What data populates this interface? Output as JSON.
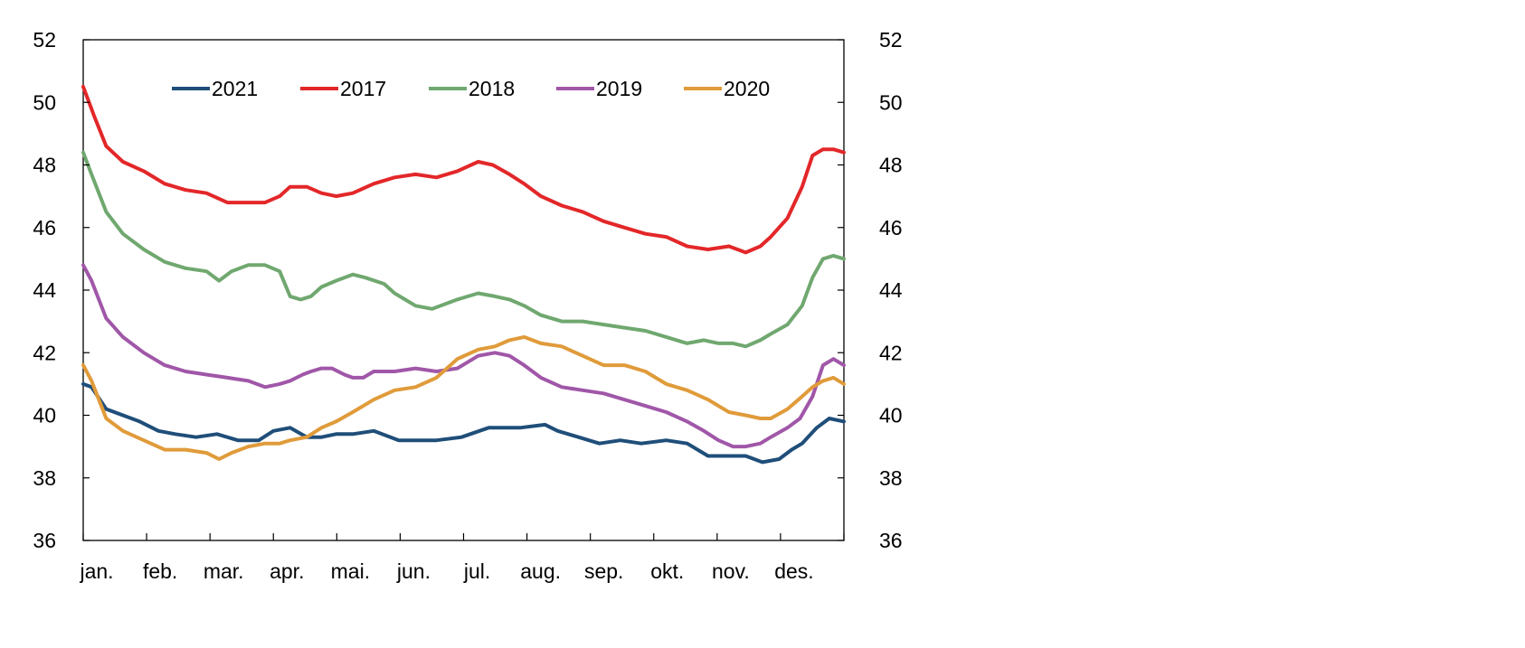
{
  "chart_data": {
    "type": "line",
    "title": "",
    "xlabel": "",
    "ylabel": "",
    "ylim": [
      36,
      52
    ],
    "y_ticks": [
      36,
      38,
      40,
      42,
      44,
      46,
      48,
      50,
      52
    ],
    "y_tick_labels": [
      "36",
      "38",
      "40",
      "42",
      "44",
      "46",
      "48",
      "50",
      "52"
    ],
    "right_axis": {
      "ylim": [
        36,
        52
      ],
      "tick_labels": [
        "36",
        "38",
        "40",
        "42",
        "44",
        "46",
        "48",
        "50",
        "52"
      ]
    },
    "x_tick_labels": [
      "jan.",
      "feb.",
      "mar.",
      "apr.",
      "mai.",
      "jun.",
      "jul.",
      "aug.",
      "sep.",
      "okt.",
      "nov.",
      "des."
    ],
    "x_domain": [
      1,
      365
    ],
    "x_unit": "day of year",
    "grid": false,
    "legend_position": "top",
    "series": [
      {
        "name": "2021",
        "color": "#1f4e79",
        "x": [
          1,
          5,
          12,
          20,
          28,
          37,
          45,
          55,
          65,
          75,
          85,
          92,
          100,
          108,
          115,
          122,
          130,
          140,
          152,
          160,
          170,
          182,
          195,
          210,
          222,
          228,
          238,
          248,
          258,
          268,
          280,
          290,
          300,
          310,
          318,
          326,
          334,
          340,
          345,
          352,
          358,
          365
        ],
        "values": [
          41.0,
          40.9,
          40.2,
          40.0,
          39.8,
          39.5,
          39.4,
          39.3,
          39.4,
          39.2,
          39.2,
          39.5,
          39.6,
          39.3,
          39.3,
          39.4,
          39.4,
          39.5,
          39.2,
          39.2,
          39.2,
          39.3,
          39.6,
          39.6,
          39.7,
          39.5,
          39.3,
          39.1,
          39.2,
          39.1,
          39.2,
          39.1,
          38.7,
          38.7,
          38.7,
          38.5,
          38.6,
          38.9,
          39.1,
          39.6,
          39.9,
          39.8
        ]
      },
      {
        "name": "2017",
        "color": "#e32729",
        "x": [
          1,
          6,
          12,
          20,
          30,
          40,
          50,
          60,
          70,
          80,
          88,
          95,
          100,
          108,
          115,
          122,
          130,
          140,
          150,
          160,
          170,
          180,
          190,
          197,
          205,
          212,
          220,
          230,
          240,
          250,
          260,
          270,
          280,
          290,
          300,
          310,
          318,
          325,
          330,
          338,
          345,
          350,
          355,
          360,
          365
        ],
        "values": [
          50.5,
          49.6,
          48.6,
          48.1,
          47.8,
          47.4,
          47.2,
          47.1,
          46.8,
          46.8,
          46.8,
          47.0,
          47.3,
          47.3,
          47.1,
          47.0,
          47.1,
          47.4,
          47.6,
          47.7,
          47.6,
          47.8,
          48.1,
          48.0,
          47.7,
          47.4,
          47.0,
          46.7,
          46.5,
          46.2,
          46.0,
          45.8,
          45.7,
          45.4,
          45.3,
          45.4,
          45.2,
          45.4,
          45.7,
          46.3,
          47.3,
          48.3,
          48.5,
          48.5,
          48.4
        ]
      },
      {
        "name": "2018",
        "color": "#70a870",
        "x": [
          1,
          5,
          12,
          20,
          30,
          40,
          50,
          60,
          66,
          72,
          80,
          88,
          95,
          100,
          105,
          110,
          115,
          122,
          130,
          136,
          145,
          150,
          160,
          168,
          180,
          190,
          198,
          205,
          212,
          220,
          230,
          240,
          250,
          260,
          270,
          280,
          290,
          298,
          305,
          312,
          318,
          325,
          330,
          338,
          345,
          350,
          355,
          360,
          365
        ],
        "values": [
          48.4,
          47.7,
          46.5,
          45.8,
          45.3,
          44.9,
          44.7,
          44.6,
          44.3,
          44.6,
          44.8,
          44.8,
          44.6,
          43.8,
          43.7,
          43.8,
          44.1,
          44.3,
          44.5,
          44.4,
          44.2,
          43.9,
          43.5,
          43.4,
          43.7,
          43.9,
          43.8,
          43.7,
          43.5,
          43.2,
          43.0,
          43.0,
          42.9,
          42.8,
          42.7,
          42.5,
          42.3,
          42.4,
          42.3,
          42.3,
          42.2,
          42.4,
          42.6,
          42.9,
          43.5,
          44.4,
          45.0,
          45.1,
          45.0
        ]
      },
      {
        "name": "2019",
        "color": "#a057a8",
        "x": [
          1,
          5,
          12,
          20,
          30,
          40,
          50,
          60,
          70,
          80,
          88,
          95,
          100,
          106,
          110,
          115,
          120,
          126,
          130,
          135,
          140,
          150,
          160,
          170,
          180,
          190,
          198,
          205,
          212,
          220,
          230,
          240,
          250,
          260,
          270,
          280,
          290,
          298,
          305,
          312,
          318,
          325,
          330,
          338,
          344,
          350,
          355,
          360,
          365
        ],
        "values": [
          44.8,
          44.3,
          43.1,
          42.5,
          42.0,
          41.6,
          41.4,
          41.3,
          41.2,
          41.1,
          40.9,
          41.0,
          41.1,
          41.3,
          41.4,
          41.5,
          41.5,
          41.3,
          41.2,
          41.2,
          41.4,
          41.4,
          41.5,
          41.4,
          41.5,
          41.9,
          42.0,
          41.9,
          41.6,
          41.2,
          40.9,
          40.8,
          40.7,
          40.5,
          40.3,
          40.1,
          39.8,
          39.5,
          39.2,
          39.0,
          39.0,
          39.1,
          39.3,
          39.6,
          39.9,
          40.6,
          41.6,
          41.8,
          41.6
        ]
      },
      {
        "name": "2020",
        "color": "#e09b3a",
        "x": [
          1,
          5,
          12,
          20,
          30,
          40,
          50,
          60,
          66,
          72,
          80,
          88,
          95,
          100,
          108,
          115,
          122,
          130,
          140,
          150,
          160,
          170,
          180,
          190,
          198,
          205,
          212,
          220,
          230,
          240,
          250,
          260,
          270,
          280,
          290,
          300,
          310,
          318,
          325,
          330,
          338,
          345,
          350,
          355,
          360,
          365
        ],
        "values": [
          41.6,
          41.1,
          39.9,
          39.5,
          39.2,
          38.9,
          38.9,
          38.8,
          38.6,
          38.8,
          39.0,
          39.1,
          39.1,
          39.2,
          39.3,
          39.6,
          39.8,
          40.1,
          40.5,
          40.8,
          40.9,
          41.2,
          41.8,
          42.1,
          42.2,
          42.4,
          42.5,
          42.3,
          42.2,
          41.9,
          41.6,
          41.6,
          41.4,
          41.0,
          40.8,
          40.5,
          40.1,
          40.0,
          39.9,
          39.9,
          40.2,
          40.6,
          40.9,
          41.1,
          41.2,
          41.0
        ]
      }
    ]
  }
}
